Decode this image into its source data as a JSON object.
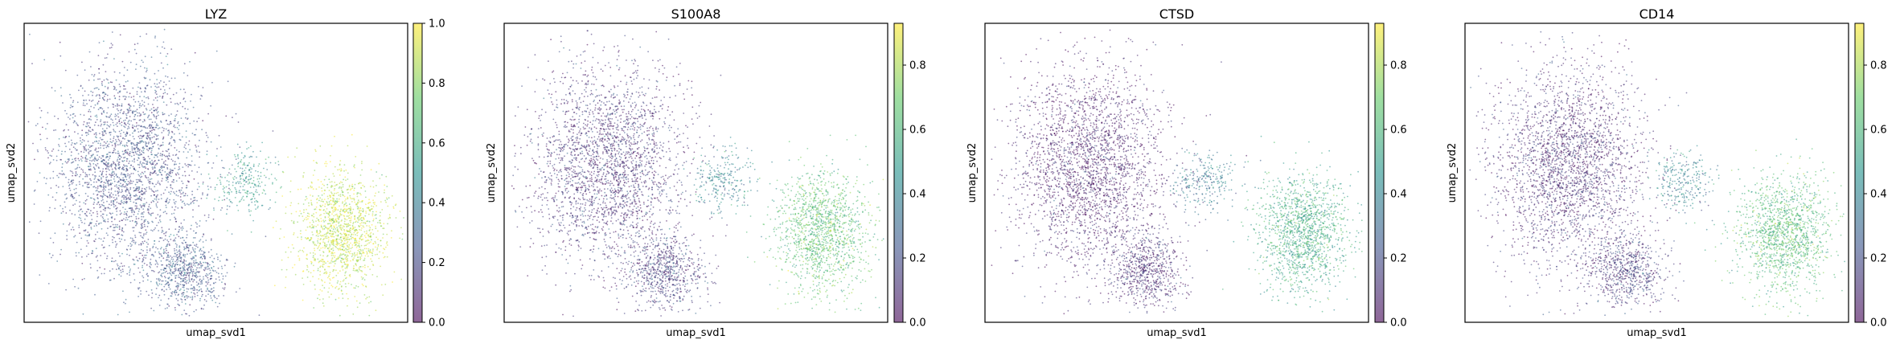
{
  "figure": {
    "background": "#ffffff"
  },
  "panels": [
    {
      "title": "LYZ",
      "xlabel": "umap_svd1",
      "ylabel": "umap_svd2",
      "colorbar": {
        "min": 0.0,
        "max": 1.0,
        "ticks": [
          "0.0",
          "0.2",
          "0.4",
          "0.6",
          "0.8",
          "1.0"
        ]
      }
    },
    {
      "title": "S100A8",
      "xlabel": "umap_svd1",
      "ylabel": "umap_svd2",
      "colorbar": {
        "min": 0.0,
        "max": 0.93,
        "ticks": [
          "0.0",
          "0.2",
          "0.4",
          "0.6",
          "0.8"
        ]
      }
    },
    {
      "title": "CTSD",
      "xlabel": "umap_svd1",
      "ylabel": "umap_svd2",
      "colorbar": {
        "min": 0.0,
        "max": 0.93,
        "ticks": [
          "0.0",
          "0.2",
          "0.4",
          "0.6",
          "0.8"
        ]
      }
    },
    {
      "title": "CD14",
      "xlabel": "umap_svd1",
      "ylabel": "umap_svd2",
      "colorbar": {
        "min": 0.0,
        "max": 0.93,
        "ticks": [
          "0.0",
          "0.2",
          "0.4",
          "0.6",
          "0.8"
        ]
      }
    }
  ],
  "chart_data": [
    {
      "type": "scatter",
      "title": "LYZ",
      "xlabel": "umap_svd1",
      "ylabel": "umap_svd2",
      "colormap": "viridis",
      "color_range": [
        0.0,
        1.0
      ],
      "alpha": 0.5,
      "axis_ticks_shown": false,
      "grid": false,
      "legend": "colorbar-right",
      "clusters": [
        {
          "center": [
            0.27,
            0.52
          ],
          "spread": [
            0.1,
            0.17
          ],
          "value": 0.22
        },
        {
          "center": [
            0.42,
            0.17
          ],
          "spread": [
            0.05,
            0.06
          ],
          "value": 0.25
        },
        {
          "center": [
            0.57,
            0.47
          ],
          "spread": [
            0.04,
            0.05
          ],
          "value": 0.52
        },
        {
          "center": [
            0.83,
            0.3
          ],
          "spread": [
            0.06,
            0.1
          ],
          "value": 0.9
        }
      ]
    },
    {
      "type": "scatter",
      "title": "S100A8",
      "xlabel": "umap_svd1",
      "ylabel": "umap_svd2",
      "colormap": "viridis",
      "color_range": [
        0.0,
        0.93
      ],
      "alpha": 0.5,
      "axis_ticks_shown": false,
      "grid": false,
      "legend": "colorbar-right",
      "clusters": [
        {
          "center": [
            0.27,
            0.52
          ],
          "spread": [
            0.1,
            0.17
          ],
          "value": 0.12
        },
        {
          "center": [
            0.42,
            0.17
          ],
          "spread": [
            0.05,
            0.06
          ],
          "value": 0.15
        },
        {
          "center": [
            0.57,
            0.47
          ],
          "spread": [
            0.04,
            0.05
          ],
          "value": 0.4
        },
        {
          "center": [
            0.83,
            0.3
          ],
          "spread": [
            0.06,
            0.1
          ],
          "value": 0.65
        }
      ]
    },
    {
      "type": "scatter",
      "title": "CTSD",
      "xlabel": "umap_svd1",
      "ylabel": "umap_svd2",
      "colormap": "viridis",
      "color_range": [
        0.0,
        0.93
      ],
      "alpha": 0.5,
      "axis_ticks_shown": false,
      "grid": false,
      "legend": "colorbar-right",
      "clusters": [
        {
          "center": [
            0.27,
            0.52
          ],
          "spread": [
            0.1,
            0.17
          ],
          "value": 0.06
        },
        {
          "center": [
            0.42,
            0.17
          ],
          "spread": [
            0.05,
            0.06
          ],
          "value": 0.1
        },
        {
          "center": [
            0.57,
            0.47
          ],
          "spread": [
            0.04,
            0.05
          ],
          "value": 0.35
        },
        {
          "center": [
            0.83,
            0.3
          ],
          "spread": [
            0.06,
            0.1
          ],
          "value": 0.55
        }
      ]
    },
    {
      "type": "scatter",
      "title": "CD14",
      "xlabel": "umap_svd1",
      "ylabel": "umap_svd2",
      "colormap": "viridis",
      "color_range": [
        0.0,
        0.93
      ],
      "alpha": 0.5,
      "axis_ticks_shown": false,
      "grid": false,
      "legend": "colorbar-right",
      "clusters": [
        {
          "center": [
            0.27,
            0.52
          ],
          "spread": [
            0.1,
            0.17
          ],
          "value": 0.1
        },
        {
          "center": [
            0.42,
            0.17
          ],
          "spread": [
            0.05,
            0.06
          ],
          "value": 0.14
        },
        {
          "center": [
            0.57,
            0.47
          ],
          "spread": [
            0.04,
            0.05
          ],
          "value": 0.4
        },
        {
          "center": [
            0.83,
            0.3
          ],
          "spread": [
            0.06,
            0.1
          ],
          "value": 0.62
        }
      ]
    }
  ]
}
